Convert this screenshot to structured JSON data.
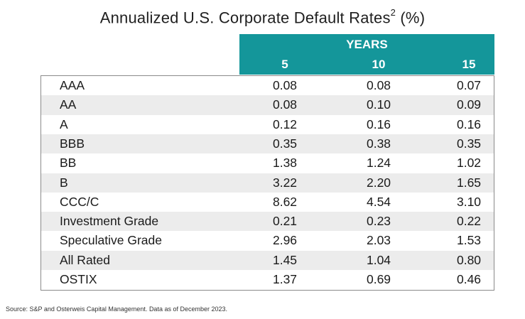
{
  "title": "Annualized U.S. Corporate Default Rates",
  "title_superscript": "2",
  "title_unit": "(%)",
  "header_group_label": "YEARS",
  "header_color": "#14969a",
  "footnote": "Source: S&P and Osterweis Capital Management. Data as of December 2023.",
  "chart_data": {
    "type": "table",
    "title": "Annualized U.S. Corporate Default Rates (%)",
    "column_group": "YEARS",
    "columns": [
      "5",
      "10",
      "15"
    ],
    "rows": [
      {
        "label": "AAA",
        "values": [
          "0.08",
          "0.08",
          "0.07"
        ]
      },
      {
        "label": "AA",
        "values": [
          "0.08",
          "0.10",
          "0.09"
        ]
      },
      {
        "label": "A",
        "values": [
          "0.12",
          "0.16",
          "0.16"
        ]
      },
      {
        "label": "BBB",
        "values": [
          "0.35",
          "0.38",
          "0.35"
        ]
      },
      {
        "label": "BB",
        "values": [
          "1.38",
          "1.24",
          "1.02"
        ]
      },
      {
        "label": "B",
        "values": [
          "3.22",
          "2.20",
          "1.65"
        ]
      },
      {
        "label": "CCC/C",
        "values": [
          "8.62",
          "4.54",
          "3.10"
        ]
      },
      {
        "label": "Investment Grade",
        "values": [
          "0.21",
          "0.23",
          "0.22"
        ]
      },
      {
        "label": "Speculative Grade",
        "values": [
          "2.96",
          "2.03",
          "1.53"
        ]
      },
      {
        "label": "All Rated",
        "values": [
          "1.45",
          "1.04",
          "0.80"
        ]
      },
      {
        "label": "OSTIX",
        "values": [
          "1.37",
          "0.69",
          "0.46"
        ]
      }
    ]
  }
}
